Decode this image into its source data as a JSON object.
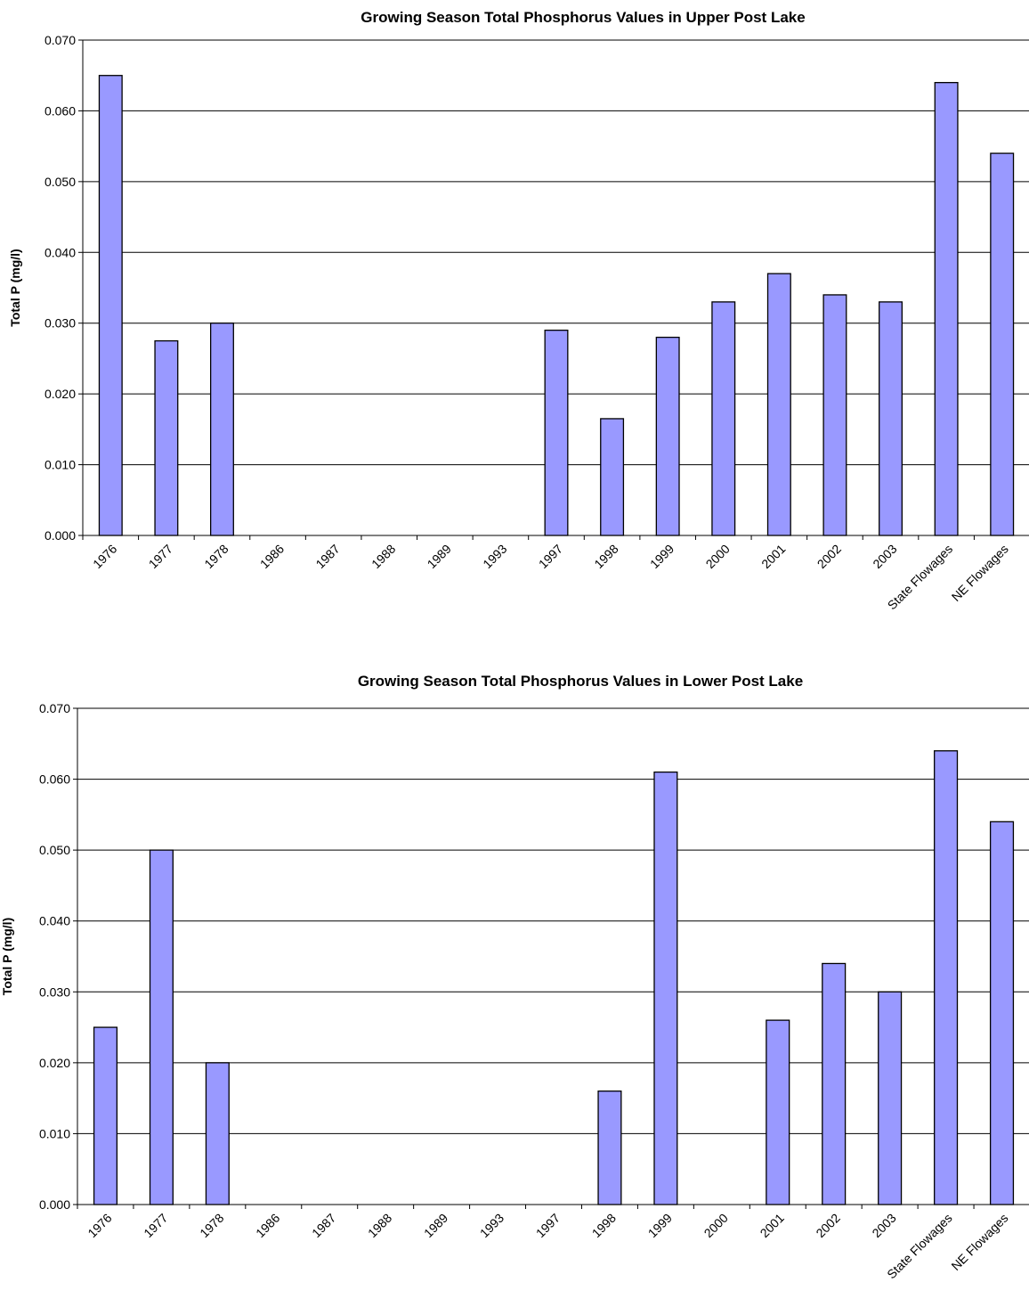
{
  "chart_data": [
    {
      "type": "bar",
      "title": "Growing Season Total Phosphorus Values in Upper Post Lake",
      "xlabel": "",
      "ylabel": "Total P (mg/l)",
      "ylim": [
        0,
        0.07
      ],
      "yticks": [
        "0.000",
        "0.010",
        "0.020",
        "0.030",
        "0.040",
        "0.050",
        "0.060",
        "0.070"
      ],
      "categories": [
        "1976",
        "1977",
        "1978",
        "1986",
        "1987",
        "1988",
        "1989",
        "1993",
        "1997",
        "1998",
        "1999",
        "2000",
        "2001",
        "2002",
        "2003",
        "State Flowages",
        "NE Flowages"
      ],
      "values": [
        0.065,
        0.0275,
        0.03,
        0,
        0,
        0,
        0,
        0,
        0.029,
        0.0165,
        0.028,
        0.033,
        0.037,
        0.034,
        0.033,
        0.064,
        0.054
      ],
      "bar_color": "#9999ff",
      "grid": true,
      "legend": "none"
    },
    {
      "type": "bar",
      "title": "Growing Season Total Phosphorus Values in Lower Post Lake",
      "xlabel": "",
      "ylabel": "Total P (mg/l)",
      "ylim": [
        0,
        0.07
      ],
      "yticks": [
        "0.000",
        "0.010",
        "0.020",
        "0.030",
        "0.040",
        "0.050",
        "0.060",
        "0.070"
      ],
      "categories": [
        "1976",
        "1977",
        "1978",
        "1986",
        "1987",
        "1988",
        "1989",
        "1993",
        "1997",
        "1998",
        "1999",
        "2000",
        "2001",
        "2002",
        "2003",
        "State Flowages",
        "NE Flowages"
      ],
      "values": [
        0.025,
        0.05,
        0.02,
        0,
        0,
        0,
        0,
        0,
        0,
        0.016,
        0.061,
        0,
        0.026,
        0.034,
        0.03,
        0.064,
        0.054
      ],
      "bar_color": "#9999ff",
      "grid": true,
      "legend": "none"
    }
  ]
}
